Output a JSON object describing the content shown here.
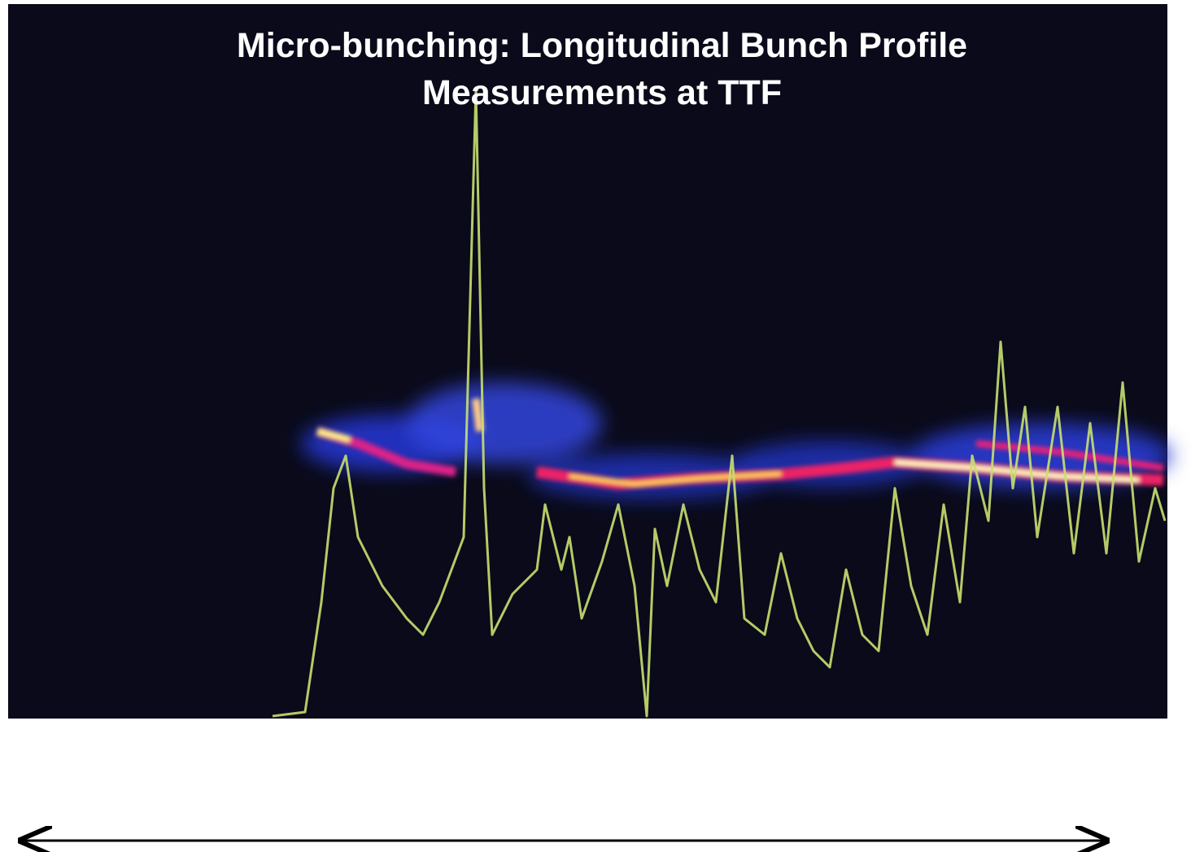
{
  "title": {
    "line1": "Micro-bunching: Longitudinal Bunch Profile",
    "line2": "Measurements at TTF"
  }
}
